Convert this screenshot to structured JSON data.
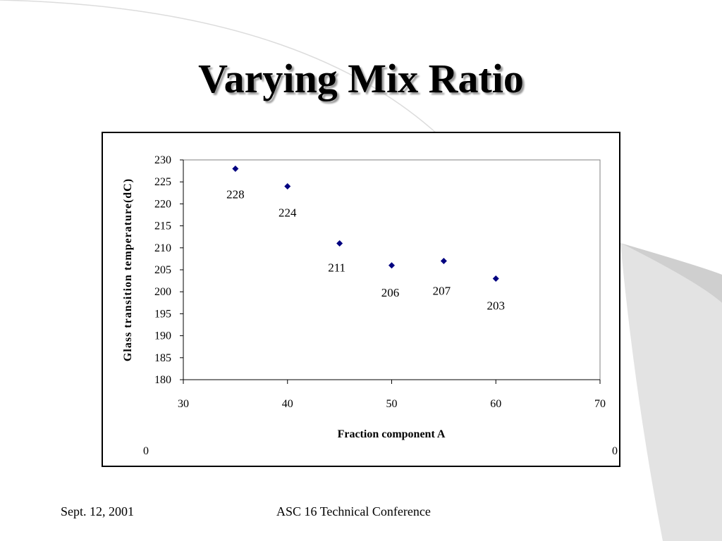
{
  "slide": {
    "title": "Varying Mix Ratio",
    "footer_date": "Sept. 12, 2001",
    "footer_conference": "ASC 16 Technical Conference"
  },
  "chart_data": {
    "type": "scatter",
    "xlabel": "Fraction component A",
    "ylabel": "Glass transition temperature(dC)",
    "xlim": [
      30,
      70
    ],
    "ylim": [
      180,
      230
    ],
    "x_ticks": [
      "30",
      "40",
      "50",
      "60",
      "70"
    ],
    "y_ticks": [
      "180",
      "185",
      "190",
      "195",
      "200",
      "205",
      "210",
      "215",
      "220",
      "225",
      "230"
    ],
    "points": [
      {
        "x": 35,
        "y": 228,
        "label": "228"
      },
      {
        "x": 40,
        "y": 224,
        "label": "224"
      },
      {
        "x": 45,
        "y": 211,
        "label": "211"
      },
      {
        "x": 50,
        "y": 206,
        "label": "206"
      },
      {
        "x": 55,
        "y": 207,
        "label": "207"
      },
      {
        "x": 60,
        "y": 203,
        "label": "203"
      }
    ],
    "corner_labels": [
      "0",
      "0"
    ],
    "marker_color": "#000080",
    "grid": false,
    "legend": "none"
  }
}
